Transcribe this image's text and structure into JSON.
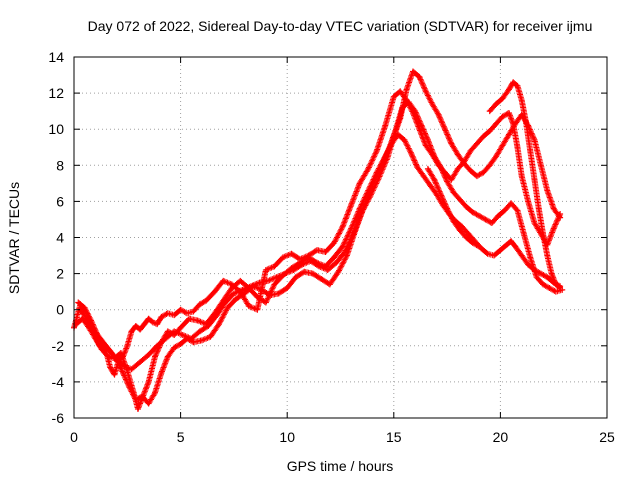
{
  "chart_data": {
    "type": "scatter",
    "title": "Day 072 of 2022, Sidereal Day-to-day VTEC variation (SDTVAR) for receiver ijmu",
    "xlabel": "GPS time / hours",
    "ylabel": "SDTVAR / TECUs",
    "xlim": [
      0,
      25
    ],
    "ylim": [
      -6,
      14
    ],
    "xticks": [
      "0",
      "5",
      "10",
      "15",
      "20",
      "25"
    ],
    "yticks": [
      "-6",
      "-4",
      "-2",
      "0",
      "2",
      "4",
      "6",
      "8",
      "10",
      "12",
      "14"
    ],
    "grid": true,
    "marker": "+",
    "color": "#ff0000",
    "series": [
      {
        "x": [
          0.0,
          0.3,
          0.6,
          0.9,
          1.2,
          1.5,
          1.7,
          1.9,
          2.1,
          2.3,
          2.5,
          2.7,
          2.9,
          3.1,
          3.3,
          3.5,
          3.7,
          3.9,
          4.1,
          4.4,
          4.7,
          5.0,
          5.3,
          5.6,
          5.9,
          6.2,
          6.6,
          7.0,
          7.4,
          7.8,
          8.2,
          8.6,
          9.0,
          9.4,
          9.8,
          10.2,
          10.6,
          11.0,
          11.4,
          11.8,
          12.2,
          12.6,
          13.0,
          13.4,
          13.8,
          14.2,
          14.6,
          15.0,
          15.3,
          15.6,
          15.9,
          16.2,
          16.5,
          16.8,
          17.1,
          17.4,
          17.7,
          18.0,
          18.3,
          18.6,
          18.9,
          19.2,
          19.5,
          19.8,
          20.1,
          20.4,
          20.6,
          20.8,
          21.0,
          21.3,
          21.6,
          21.9,
          22.2,
          22.5,
          22.8
        ],
        "y": [
          -1.0,
          0.3,
          -0.2,
          -1.2,
          -2.0,
          -2.3,
          -3.2,
          -3.6,
          -2.8,
          -2.6,
          -2.0,
          -1.2,
          -0.9,
          -1.1,
          -0.8,
          -0.5,
          -0.7,
          -0.8,
          -0.4,
          -0.2,
          -0.3,
          0.0,
          -0.2,
          -0.1,
          0.3,
          0.5,
          1.0,
          1.6,
          1.4,
          1.0,
          0.2,
          0.0,
          2.2,
          2.4,
          2.9,
          3.1,
          2.8,
          3.0,
          3.3,
          3.2,
          3.7,
          4.6,
          5.8,
          7.0,
          7.8,
          8.8,
          10.2,
          11.8,
          12.1,
          11.6,
          10.9,
          10.0,
          9.1,
          8.6,
          8.0,
          7.6,
          7.2,
          7.8,
          8.2,
          8.8,
          9.2,
          9.6,
          9.9,
          10.3,
          10.7,
          10.9,
          10.3,
          9.0,
          7.4,
          6.0,
          4.8,
          4.2,
          3.6,
          4.5,
          5.3
        ]
      },
      {
        "x": [
          0.1,
          0.4,
          0.7,
          1.0,
          1.3,
          1.6,
          1.9,
          2.2,
          2.5,
          2.8,
          3.0,
          3.2,
          3.5,
          3.8,
          4.1,
          4.4,
          4.7,
          5.0,
          5.4,
          5.8,
          6.2,
          6.6,
          7.0,
          7.4,
          7.8,
          8.2,
          8.6,
          9.0,
          9.4,
          9.8,
          10.2,
          10.6,
          11.0,
          11.4,
          11.8,
          12.2,
          12.6,
          13.0,
          13.4,
          13.8,
          14.2,
          14.6,
          14.9,
          15.2,
          15.5,
          15.8,
          16.1,
          16.4,
          16.7,
          17.0,
          17.3,
          17.6,
          17.9,
          18.2,
          18.5,
          18.8,
          19.1,
          19.4,
          19.7,
          20.0,
          20.3,
          20.5,
          20.7,
          21.0,
          21.3,
          21.6,
          21.9,
          22.2,
          22.5,
          22.8
        ],
        "y": [
          -0.8,
          -0.5,
          -1.0,
          -1.6,
          -2.2,
          -2.6,
          -2.7,
          -2.4,
          -3.4,
          -4.6,
          -5.5,
          -4.9,
          -4.0,
          -2.6,
          -1.8,
          -1.2,
          -1.4,
          -1.0,
          -0.5,
          -0.6,
          -0.8,
          -0.2,
          0.5,
          1.2,
          1.6,
          1.2,
          0.7,
          0.4,
          1.4,
          1.9,
          2.3,
          2.6,
          2.9,
          2.6,
          2.4,
          2.9,
          3.5,
          4.5,
          5.6,
          6.6,
          7.6,
          8.5,
          9.2,
          9.7,
          9.4,
          8.7,
          7.9,
          7.4,
          6.9,
          6.4,
          5.8,
          5.3,
          4.9,
          4.6,
          4.2,
          3.8,
          3.4,
          3.1,
          3.0,
          3.3,
          3.6,
          3.8,
          3.5,
          3.0,
          2.5,
          2.2,
          2.0,
          1.8,
          1.5,
          1.3
        ]
      },
      {
        "x": [
          0.2,
          0.5,
          0.8,
          1.1,
          1.4,
          1.7,
          2.0,
          2.3,
          2.6,
          2.9,
          3.2,
          3.5,
          3.8,
          4.1,
          4.4,
          4.7,
          5.0,
          5.3,
          5.6,
          6.0,
          6.4,
          6.8,
          7.2,
          7.6,
          8.0,
          8.4,
          8.8,
          9.2,
          9.6,
          10.0,
          10.4,
          10.8,
          11.2,
          11.6,
          12.0,
          12.4,
          12.8,
          13.2,
          13.6,
          14.0,
          14.4,
          14.8,
          15.1,
          15.4,
          15.7,
          16.0,
          16.3,
          16.6,
          16.9,
          17.2,
          17.5,
          17.8,
          18.1,
          18.4,
          18.7,
          19.0,
          19.3,
          19.6,
          19.9,
          20.2,
          20.5,
          20.8,
          21.1,
          21.4,
          21.7,
          22.0,
          22.3,
          22.6,
          22.9
        ],
        "y": [
          0.4,
          0.1,
          -0.6,
          -1.4,
          -1.9,
          -2.3,
          -2.8,
          -3.5,
          -4.3,
          -5.0,
          -4.8,
          -5.2,
          -4.6,
          -3.5,
          -2.6,
          -2.1,
          -1.9,
          -1.6,
          -1.8,
          -1.7,
          -1.5,
          -0.8,
          0.1,
          0.6,
          0.9,
          1.3,
          1.1,
          0.8,
          0.9,
          1.2,
          1.8,
          2.1,
          2.0,
          1.7,
          1.4,
          2.1,
          3.0,
          4.4,
          5.7,
          6.9,
          7.9,
          9.0,
          10.0,
          11.2,
          11.5,
          11.0,
          10.2,
          9.4,
          8.5,
          7.9,
          7.1,
          6.5,
          6.1,
          5.7,
          5.4,
          5.2,
          5.0,
          4.8,
          5.2,
          5.5,
          5.9,
          5.5,
          4.2,
          2.9,
          1.8,
          1.4,
          1.2,
          1.0,
          1.1
        ]
      },
      {
        "x": [
          0.3,
          0.7,
          1.1,
          1.5,
          1.9,
          2.3,
          2.7,
          3.1,
          3.5,
          3.9,
          4.3,
          4.7,
          5.1,
          5.5,
          5.9,
          6.3,
          6.7,
          7.1,
          7.5,
          7.9,
          8.3,
          8.7,
          9.1,
          9.5,
          9.9,
          10.3,
          10.7,
          11.1,
          11.5,
          11.9,
          12.3,
          12.7,
          13.1,
          13.5,
          13.9,
          14.3,
          14.7,
          15.0,
          15.3,
          15.6,
          15.9,
          16.2,
          16.5,
          16.8,
          17.1,
          17.4,
          17.7,
          18.0,
          18.3,
          18.6,
          18.9,
          19.2,
          19.5,
          19.8,
          20.1,
          20.4,
          20.7,
          21.0,
          21.3,
          21.6,
          21.9,
          22.2,
          22.5,
          22.8
        ],
        "y": [
          0.0,
          -0.7,
          -1.4,
          -2.0,
          -2.6,
          -3.1,
          -3.3,
          -2.9,
          -2.5,
          -2.0,
          -1.6,
          -1.2,
          -1.4,
          -1.6,
          -1.2,
          -0.9,
          -0.3,
          0.4,
          0.9,
          1.1,
          1.3,
          1.5,
          1.6,
          1.8,
          2.0,
          2.2,
          2.5,
          2.7,
          2.4,
          2.2,
          2.6,
          3.2,
          4.2,
          5.4,
          6.3,
          7.3,
          8.4,
          9.6,
          10.6,
          12.2,
          13.2,
          12.9,
          12.1,
          11.4,
          10.8,
          10.0,
          9.2,
          8.6,
          8.1,
          7.7,
          7.4,
          7.6,
          8.0,
          8.5,
          9.1,
          9.7,
          10.3,
          10.8,
          10.2,
          9.4,
          8.0,
          6.6,
          5.6,
          5.1
        ]
      },
      {
        "x": [
          19.5,
          19.8,
          20.1,
          20.4,
          20.6,
          20.8,
          21.0,
          21.2,
          21.4,
          21.6,
          21.8,
          22.0,
          22.2,
          22.4,
          22.6,
          22.8
        ],
        "y": [
          11.0,
          11.4,
          11.7,
          12.2,
          12.6,
          12.4,
          11.6,
          10.4,
          8.8,
          7.2,
          5.6,
          4.2,
          3.0,
          2.0,
          1.4,
          1.2
        ]
      },
      {
        "x": [
          16.6,
          16.9,
          17.2,
          17.5,
          17.8,
          18.1,
          18.4,
          18.7,
          19.0
        ],
        "y": [
          7.8,
          7.2,
          6.4,
          5.6,
          4.9,
          4.4,
          4.0,
          3.7,
          3.5
        ]
      }
    ]
  }
}
